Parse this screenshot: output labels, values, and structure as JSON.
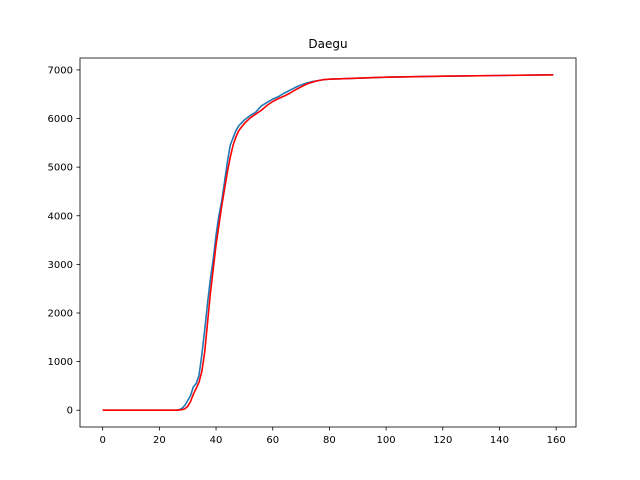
{
  "chart_data": {
    "type": "line",
    "title": "Daegu",
    "xlabel": "",
    "ylabel": "",
    "xlim": [
      -8,
      167
    ],
    "ylim": [
      -345,
      7245
    ],
    "xticks": [
      0,
      20,
      40,
      60,
      80,
      100,
      120,
      140,
      160
    ],
    "yticks": [
      0,
      1000,
      2000,
      3000,
      4000,
      5000,
      6000,
      7000
    ],
    "grid": false,
    "series": [
      {
        "color": "#1f77b4",
        "x": [
          0,
          10,
          20,
          26,
          27,
          28,
          29,
          30,
          31,
          32,
          33,
          34,
          35,
          36,
          37,
          38,
          39,
          40,
          41,
          42,
          43,
          44,
          45,
          46,
          47,
          48,
          50,
          52,
          54,
          56,
          58,
          60,
          62,
          64,
          66,
          68,
          70,
          72,
          74,
          76,
          78,
          80,
          90,
          100,
          120,
          140,
          159
        ],
        "y": [
          0,
          0,
          0,
          0,
          10,
          40,
          100,
          200,
          300,
          480,
          550,
          720,
          1150,
          1650,
          2200,
          2700,
          3100,
          3600,
          4000,
          4300,
          4700,
          5100,
          5450,
          5600,
          5750,
          5850,
          5970,
          6060,
          6130,
          6260,
          6330,
          6400,
          6450,
          6520,
          6580,
          6640,
          6690,
          6730,
          6760,
          6780,
          6800,
          6810,
          6830,
          6850,
          6870,
          6885,
          6900
        ]
      },
      {
        "color": "#ff0000",
        "x": [
          0,
          10,
          20,
          26,
          27,
          28,
          29,
          30,
          31,
          32,
          33,
          34,
          35,
          36,
          37,
          38,
          39,
          40,
          41,
          42,
          43,
          44,
          45,
          46,
          47,
          48,
          50,
          52,
          54,
          56,
          58,
          60,
          62,
          64,
          66,
          68,
          70,
          72,
          74,
          76,
          78,
          80,
          90,
          100,
          120,
          140,
          159
        ],
        "y": [
          0,
          0,
          0,
          0,
          5,
          10,
          30,
          80,
          180,
          330,
          450,
          580,
          800,
          1200,
          1800,
          2400,
          2900,
          3400,
          3800,
          4200,
          4550,
          4900,
          5200,
          5450,
          5620,
          5750,
          5900,
          6010,
          6090,
          6170,
          6270,
          6350,
          6410,
          6460,
          6520,
          6590,
          6650,
          6710,
          6750,
          6780,
          6800,
          6810,
          6830,
          6850,
          6870,
          6885,
          6900
        ]
      }
    ]
  }
}
